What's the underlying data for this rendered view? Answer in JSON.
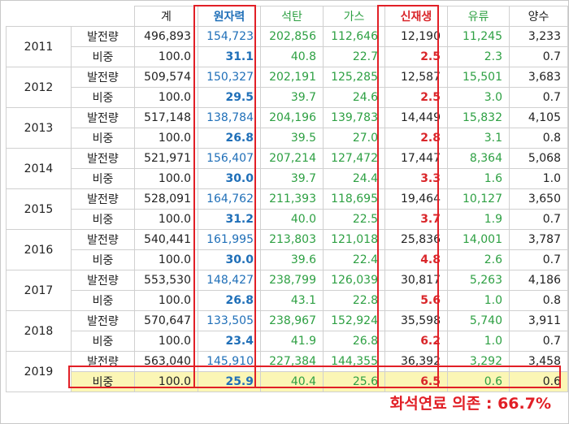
{
  "headers": {
    "total": "계",
    "nuclear": "원자력",
    "coal": "석탄",
    "gas": "가스",
    "renewable": "신재생",
    "oil": "유류",
    "pumped": "양수"
  },
  "row_labels": {
    "generation": "발전량",
    "share": "비중"
  },
  "years": [
    {
      "year": "2011",
      "gen": [
        "496,893",
        "154,723",
        "202,856",
        "112,646",
        "12,190",
        "11,245",
        "3,233"
      ],
      "share": [
        "100.0",
        "31.1",
        "40.8",
        "22.7",
        "2.5",
        "2.3",
        "0.7"
      ]
    },
    {
      "year": "2012",
      "gen": [
        "509,574",
        "150,327",
        "202,191",
        "125,285",
        "12,587",
        "15,501",
        "3,683"
      ],
      "share": [
        "100.0",
        "29.5",
        "39.7",
        "24.6",
        "2.5",
        "3.0",
        "0.7"
      ]
    },
    {
      "year": "2013",
      "gen": [
        "517,148",
        "138,784",
        "204,196",
        "139,783",
        "14,449",
        "15,832",
        "4,105"
      ],
      "share": [
        "100.0",
        "26.8",
        "39.5",
        "27.0",
        "2.8",
        "3.1",
        "0.8"
      ]
    },
    {
      "year": "2014",
      "gen": [
        "521,971",
        "156,407",
        "207,214",
        "127,472",
        "17,447",
        "8,364",
        "5,068"
      ],
      "share": [
        "100.0",
        "30.0",
        "39.7",
        "24.4",
        "3.3",
        "1.6",
        "1.0"
      ]
    },
    {
      "year": "2015",
      "gen": [
        "528,091",
        "164,762",
        "211,393",
        "118,695",
        "19,464",
        "10,127",
        "3,650"
      ],
      "share": [
        "100.0",
        "31.2",
        "40.0",
        "22.5",
        "3.7",
        "1.9",
        "0.7"
      ]
    },
    {
      "year": "2016",
      "gen": [
        "540,441",
        "161,995",
        "213,803",
        "121,018",
        "25,836",
        "14,001",
        "3,787"
      ],
      "share": [
        "100.0",
        "30.0",
        "39.6",
        "22.4",
        "4.8",
        "2.6",
        "0.7"
      ]
    },
    {
      "year": "2017",
      "gen": [
        "553,530",
        "148,427",
        "238,799",
        "126,039",
        "30,817",
        "5,263",
        "4,186"
      ],
      "share": [
        "100.0",
        "26.8",
        "43.1",
        "22.8",
        "5.6",
        "1.0",
        "0.8"
      ]
    },
    {
      "year": "2018",
      "gen": [
        "570,647",
        "133,505",
        "238,967",
        "152,924",
        "35,598",
        "5,740",
        "3,911"
      ],
      "share": [
        "100.0",
        "23.4",
        "41.9",
        "26.8",
        "6.2",
        "1.0",
        "0.7"
      ]
    },
    {
      "year": "2019",
      "gen": [
        "563,040",
        "145,910",
        "227,384",
        "144,355",
        "36,392",
        "3,292",
        "3,458"
      ],
      "share": [
        "100.0",
        "25.9",
        "40.4",
        "25.6",
        "6.5",
        "0.6",
        "0.6"
      ]
    }
  ],
  "highlight_row_year": "2019",
  "footnote": "화석연료 의존 : 66.7%",
  "colors": {
    "nuclear": "#1f6fb8",
    "fossil": "#2ea043",
    "renewable": "#d9262a",
    "box": "#e11f26",
    "highlight": "#fbf6b5"
  }
}
